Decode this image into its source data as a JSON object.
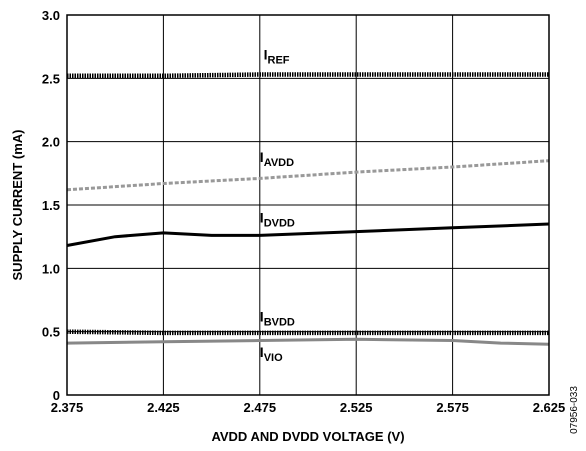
{
  "chart_data": {
    "type": "line",
    "xlabel": "AVDD AND DVDD VOLTAGE (V)",
    "ylabel": "SUPPLY CURRENT (mA)",
    "xlim": [
      2.375,
      2.625
    ],
    "ylim": [
      0,
      3.0
    ],
    "x_ticks": [
      "2.375",
      "2.425",
      "2.475",
      "2.525",
      "2.575",
      "2.625"
    ],
    "y_ticks": [
      "0",
      "0.5",
      "1.0",
      "1.5",
      "2.0",
      "2.5",
      "3.0"
    ],
    "grid": true,
    "figure_id": "07956-033",
    "series": [
      {
        "name": "IREF",
        "label_main": "I",
        "label_sub": "REF",
        "style": "dotted-thick",
        "color": "#000000",
        "x": [
          2.375,
          2.425,
          2.475,
          2.525,
          2.575,
          2.625
        ],
        "y": [
          2.52,
          2.52,
          2.53,
          2.53,
          2.53,
          2.53
        ]
      },
      {
        "name": "IAVDD",
        "label_main": "I",
        "label_sub": "AVDD",
        "style": "dashed",
        "color": "#999999",
        "x": [
          2.375,
          2.425,
          2.475,
          2.525,
          2.575,
          2.625
        ],
        "y": [
          1.62,
          1.67,
          1.71,
          1.76,
          1.8,
          1.85
        ]
      },
      {
        "name": "IDVDD",
        "label_main": "I",
        "label_sub": "DVDD",
        "style": "solid",
        "color": "#000000",
        "x": [
          2.375,
          2.4,
          2.425,
          2.45,
          2.475,
          2.525,
          2.575,
          2.625
        ],
        "y": [
          1.18,
          1.25,
          1.28,
          1.26,
          1.26,
          1.29,
          1.32,
          1.35
        ]
      },
      {
        "name": "IBVDD",
        "label_main": "I",
        "label_sub": "BVDD",
        "style": "dotted-thick",
        "color": "#000000",
        "x": [
          2.375,
          2.425,
          2.475,
          2.525,
          2.575,
          2.625
        ],
        "y": [
          0.5,
          0.49,
          0.49,
          0.49,
          0.49,
          0.49
        ]
      },
      {
        "name": "IVIO",
        "label_main": "I",
        "label_sub": "VIO",
        "style": "solid",
        "color": "#888888",
        "x": [
          2.375,
          2.425,
          2.475,
          2.525,
          2.575,
          2.6,
          2.625
        ],
        "y": [
          0.41,
          0.42,
          0.43,
          0.44,
          0.43,
          0.41,
          0.4
        ]
      }
    ]
  }
}
